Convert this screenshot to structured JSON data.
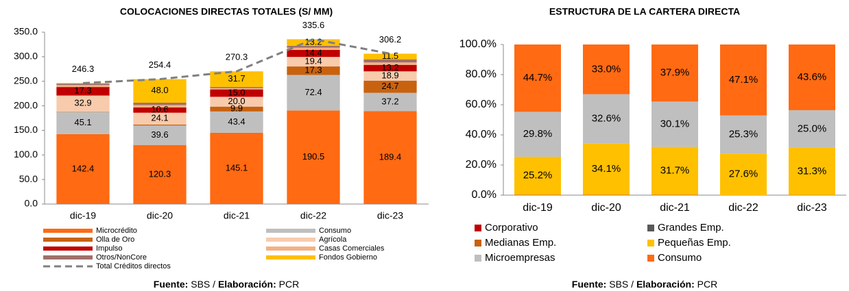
{
  "chart_data": [
    {
      "type": "bar",
      "stacked": true,
      "title": "COLOCACIONES DIRECTAS TOTALES (S/ MM)",
      "categories": [
        "dic-19",
        "dic-20",
        "dic-21",
        "dic-22",
        "dic-23"
      ],
      "ylim": [
        0,
        350
      ],
      "yticks": [
        {
          "value": 0,
          "label": "0.0"
        },
        {
          "value": 50,
          "label": "50.0"
        },
        {
          "value": 100,
          "label": "100.0"
        },
        {
          "value": 150,
          "label": "150.0"
        },
        {
          "value": 200,
          "label": "200.0"
        },
        {
          "value": 250,
          "label": "250.0"
        },
        {
          "value": 300,
          "label": "300.0"
        },
        {
          "value": 350,
          "label": "350.0"
        }
      ],
      "series": [
        {
          "name": "Microcrédito",
          "color": "#ff6a13",
          "values": [
            142.4,
            120.3,
            145.1,
            190.5,
            189.4
          ],
          "value_labels": [
            "142.4",
            "120.3",
            "145.1",
            "190.5",
            "189.4"
          ]
        },
        {
          "name": "Consumo",
          "color": "#bfbfbf",
          "values": [
            45.1,
            39.6,
            43.4,
            72.4,
            37.2
          ],
          "value_labels": [
            "45.1",
            "39.6",
            "43.4",
            "72.4",
            "37.2"
          ]
        },
        {
          "name": "Olla de Oro",
          "color": "#c8620f",
          "values": [
            0.6,
            2.0,
            9.9,
            17.3,
            24.7
          ],
          "value_labels": [
            null,
            null,
            "9.9",
            "17.3",
            "24.7"
          ]
        },
        {
          "name": "Agrícola",
          "color": "#f8cbad",
          "values": [
            32.9,
            24.1,
            20.0,
            19.4,
            18.9
          ],
          "value_labels": [
            "32.9",
            "24.1",
            "20.0",
            "19.4",
            "18.9"
          ]
        },
        {
          "name": "Impulso",
          "color": "#c00000",
          "values": [
            17.3,
            10.6,
            15.0,
            14.4,
            13.2
          ],
          "value_labels": [
            "17.3",
            "10.6",
            "15.0",
            "14.4",
            "13.2"
          ]
        },
        {
          "name": "Casas Comerciales",
          "color": "#f4b183",
          "values": [
            4.0,
            5.0,
            2.7,
            4.4,
            5.0
          ],
          "value_labels": [
            null,
            null,
            null,
            null,
            null
          ]
        },
        {
          "name": "Otros/NonCore",
          "color": "#a0706a",
          "values": [
            3.0,
            4.8,
            2.5,
            4.0,
            6.3
          ],
          "value_labels": [
            null,
            null,
            null,
            null,
            null
          ]
        },
        {
          "name": "Fondos Gobierno",
          "color": "#ffc000",
          "values": [
            1.0,
            48.0,
            31.7,
            13.2,
            11.5
          ],
          "value_labels": [
            null,
            "48.0",
            "31.7",
            "13.2",
            "11.5"
          ]
        },
        {
          "name": "Total Créditos directos",
          "type": "line",
          "color": "#808080",
          "values": [
            246.3,
            254.4,
            270.3,
            335.6,
            306.2
          ],
          "value_labels": [
            "246.3",
            "254.4",
            "270.3",
            "335.6",
            "306.2"
          ]
        }
      ],
      "source": [
        "Fuente:",
        "SBS /",
        "Elaboración:",
        "PCR"
      ]
    },
    {
      "type": "bar",
      "stacked": true,
      "title": "ESTRUCTURA DE LA CARTERA DIRECTA",
      "categories": [
        "dic-19",
        "dic-20",
        "dic-21",
        "dic-22",
        "dic-23"
      ],
      "ylim": [
        0,
        100
      ],
      "yticks": [
        {
          "value": 0,
          "label": "0.0%"
        },
        {
          "value": 20,
          "label": "20.0%"
        },
        {
          "value": 40,
          "label": "40.0%"
        },
        {
          "value": 60,
          "label": "60.0%"
        },
        {
          "value": 80,
          "label": "80.0%"
        },
        {
          "value": 100,
          "label": "100.0%"
        }
      ],
      "series": [
        {
          "name": "Corporativo",
          "color": "#c00000",
          "values": [
            0,
            0,
            0,
            0,
            0
          ]
        },
        {
          "name": "Grandes Emp.",
          "color": "#595959",
          "values": [
            0,
            0,
            0,
            0,
            0
          ]
        },
        {
          "name": "Medianas Emp.",
          "color": "#c8620f",
          "values": [
            0.3,
            0.3,
            0.3,
            0,
            0.1
          ]
        },
        {
          "name": "Pequeñas Emp.",
          "color": "#ffc000",
          "values": [
            25.2,
            34.1,
            31.7,
            27.6,
            31.3
          ],
          "value_labels": [
            "25.2%",
            "34.1%",
            "31.7%",
            "27.6%",
            "31.3%"
          ]
        },
        {
          "name": "Microempresas",
          "color": "#bfbfbf",
          "values": [
            29.8,
            32.6,
            30.1,
            25.3,
            25.0
          ],
          "value_labels": [
            "29.8%",
            "32.6%",
            "30.1%",
            "25.3%",
            "25.0%"
          ]
        },
        {
          "name": "Consumo",
          "color": "#ff6a13",
          "values": [
            44.7,
            33.0,
            37.9,
            47.1,
            43.6
          ],
          "value_labels": [
            "44.7%",
            "33.0%",
            "37.9%",
            "47.1%",
            "43.6%"
          ]
        }
      ],
      "source": [
        "Fuente:",
        "SBS /",
        "Elaboración:",
        "PCR"
      ]
    }
  ]
}
